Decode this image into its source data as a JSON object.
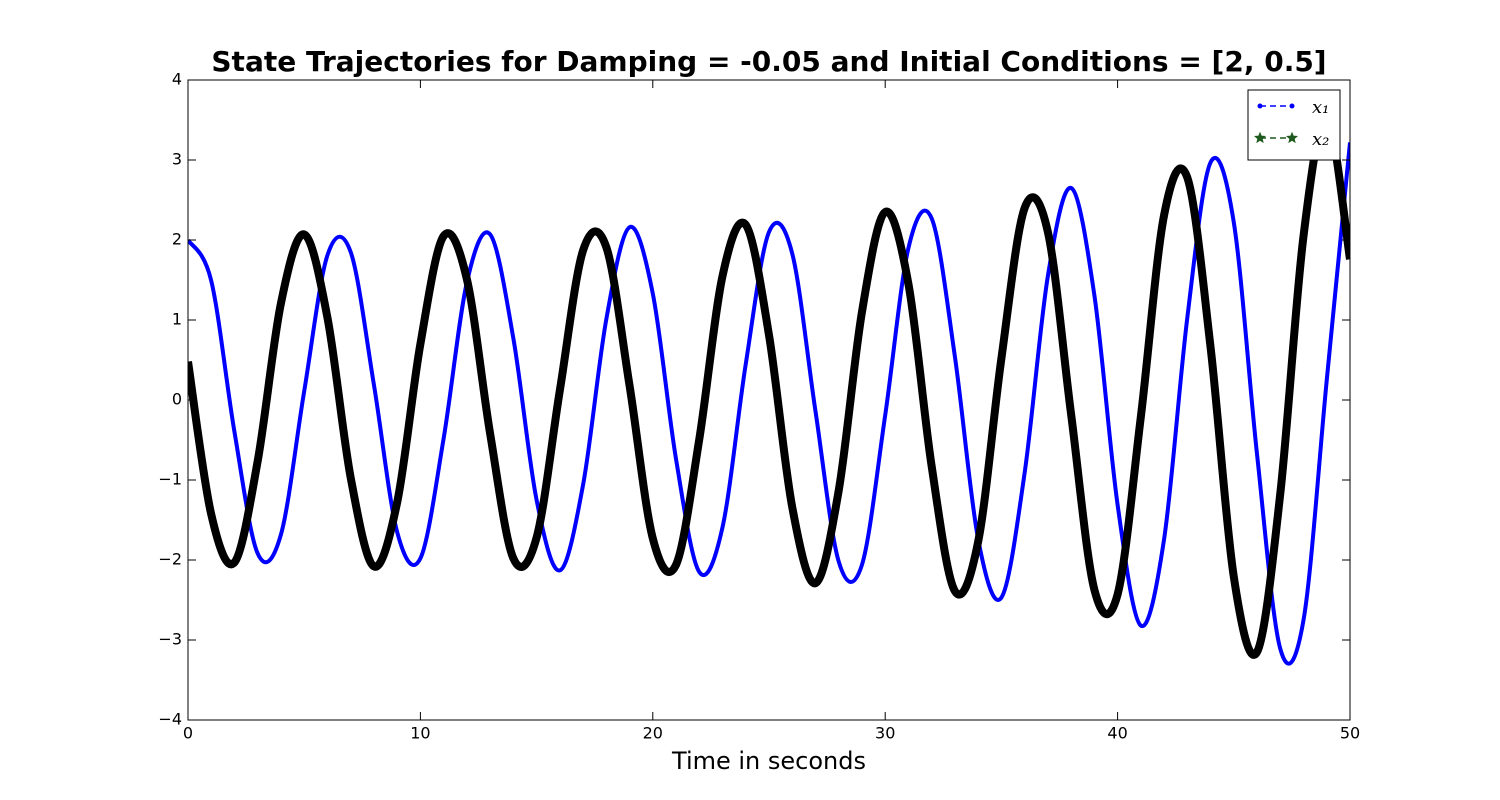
{
  "chart_data": {
    "type": "line",
    "title": "State Trajectories for Damping = -0.05 and Initial Conditions = [2, 0.5]",
    "x_label": "Time in seconds",
    "x": [
      0,
      1,
      2,
      3,
      4,
      5,
      6,
      7,
      8,
      9,
      10,
      11,
      12,
      13,
      14,
      15,
      16,
      17,
      18,
      19,
      20,
      21,
      22,
      23,
      24,
      25,
      26,
      27,
      28,
      29,
      30,
      31,
      32,
      33,
      34,
      35,
      36,
      37,
      38,
      39,
      40,
      41,
      42,
      43,
      44,
      45,
      46,
      47,
      48,
      49,
      50
    ],
    "series": [
      {
        "name": "x₁",
        "color": "#0000ff",
        "marker_color": "#0000ff",
        "line_width": 4,
        "values": [
          2.0,
          1.49,
          -0.4,
          -1.92,
          -1.68,
          0.11,
          1.81,
          1.85,
          0.19,
          -1.65,
          -1.98,
          -0.48,
          1.47,
          2.07,
          0.77,
          -1.25,
          -2.13,
          -1.06,
          1.01,
          2.16,
          1.33,
          -0.74,
          -2.15,
          -1.59,
          0.45,
          2.1,
          1.83,
          -0.14,
          -2.02,
          -2.06,
          -0.19,
          1.9,
          2.27,
          0.54,
          -1.74,
          -2.47,
          -0.91,
          1.55,
          2.65,
          1.31,
          -1.31,
          -2.82,
          -1.74,
          1.03,
          2.97,
          2.22,
          -0.68,
          -3.11,
          -2.75,
          0.25,
          3.22
        ]
      },
      {
        "name": "x₂",
        "color": "#000000",
        "marker_color": "#1f5a1f",
        "line_width": 8,
        "values": [
          0.48,
          -1.43,
          -2.03,
          -0.76,
          1.21,
          2.07,
          1.03,
          -0.97,
          -2.08,
          -1.28,
          0.7,
          2.05,
          1.51,
          -0.42,
          -1.98,
          -1.72,
          0.12,
          1.87,
          1.91,
          0.18,
          -1.73,
          -2.06,
          -0.49,
          1.55,
          2.19,
          0.81,
          -1.34,
          -2.29,
          -1.13,
          1.1,
          2.35,
          1.45,
          -0.83,
          -2.39,
          -1.77,
          0.52,
          2.4,
          2.1,
          -0.18,
          -2.37,
          -2.43,
          -0.21,
          2.31,
          2.78,
          0.66,
          -2.21,
          -3.15,
          -1.17,
          2.05,
          3.53,
          1.76
        ]
      }
    ],
    "xlim": [
      0,
      50
    ],
    "ylim": [
      -4,
      4
    ],
    "xticks": [
      0,
      10,
      20,
      30,
      40,
      50
    ],
    "yticks": [
      {
        "value": -4,
        "label": "−4"
      },
      {
        "value": -3,
        "label": "−3"
      },
      {
        "value": -2,
        "label": "−2"
      },
      {
        "value": -1,
        "label": "−1"
      },
      0,
      1,
      2,
      3,
      4
    ],
    "grid": false,
    "legend": "upper right"
  }
}
